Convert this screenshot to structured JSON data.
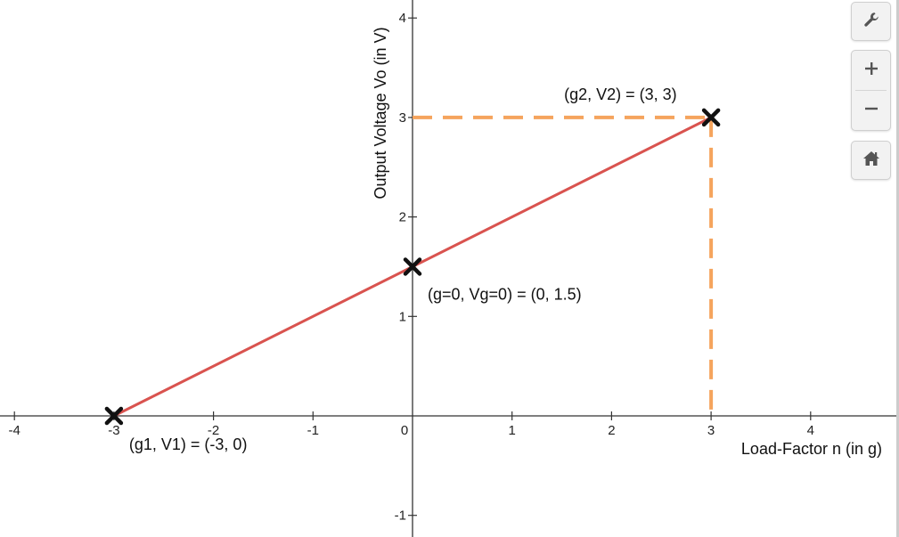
{
  "chart_data": {
    "type": "line",
    "title": "",
    "xlabel": "Load-Factor n (in g)",
    "ylabel": "Output Voltage Vo (in V)",
    "xlim": [
      -4.2,
      4.85
    ],
    "ylim": [
      -1.2,
      4.2
    ],
    "x_ticks": [
      -4,
      -3,
      -2,
      -1,
      1,
      2,
      3,
      4
    ],
    "y_ticks": [
      -1,
      1,
      2,
      3,
      4
    ],
    "origin_label": "0",
    "grid": false,
    "series": [
      {
        "x": [
          -3,
          3
        ],
        "y": [
          0,
          3
        ],
        "color": "#d9534f"
      }
    ],
    "points": [
      {
        "x": -3,
        "y": 0,
        "label": "(g1, V1) = (-3, 0)",
        "marker": "x"
      },
      {
        "x": 0,
        "y": 1.5,
        "label": "(g=0, Vg=0) = (0, 1.5)",
        "marker": "x"
      },
      {
        "x": 3,
        "y": 3,
        "label": "(g2, V2) = (3, 3)",
        "marker": "x"
      }
    ],
    "guide_lines": [
      {
        "from": [
          0,
          3
        ],
        "to": [
          3,
          3
        ],
        "style": "dashed",
        "color": "#f5a45d"
      },
      {
        "from": [
          3,
          3
        ],
        "to": [
          3,
          0
        ],
        "style": "dashed",
        "color": "#f5a45d"
      }
    ]
  },
  "controls": {
    "settings_icon": "wrench-icon",
    "zoom_in_icon": "plus-icon",
    "zoom_out_icon": "minus-icon",
    "home_icon": "home-icon"
  }
}
